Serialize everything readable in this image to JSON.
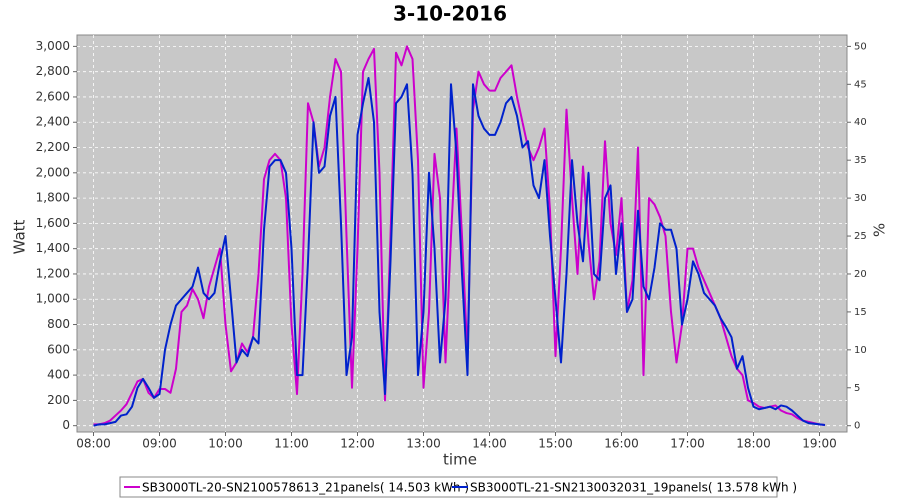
{
  "chart_data": {
    "type": "line",
    "title": "3-10-2016",
    "xlabel": "time",
    "ylabel": "Watt",
    "y2label": "%",
    "x": [
      "08:00",
      "08:05",
      "08:10",
      "08:15",
      "08:20",
      "08:25",
      "08:30",
      "08:35",
      "08:40",
      "08:45",
      "08:50",
      "08:55",
      "09:00",
      "09:05",
      "09:10",
      "09:15",
      "09:20",
      "09:25",
      "09:30",
      "09:35",
      "09:40",
      "09:45",
      "09:50",
      "09:55",
      "10:00",
      "10:05",
      "10:10",
      "10:15",
      "10:20",
      "10:25",
      "10:30",
      "10:35",
      "10:40",
      "10:45",
      "10:50",
      "10:55",
      "11:00",
      "11:05",
      "11:10",
      "11:15",
      "11:20",
      "11:25",
      "11:30",
      "11:35",
      "11:40",
      "11:45",
      "11:50",
      "11:55",
      "12:00",
      "12:05",
      "12:10",
      "12:15",
      "12:20",
      "12:25",
      "12:30",
      "12:35",
      "12:40",
      "12:45",
      "12:50",
      "12:55",
      "13:00",
      "13:05",
      "13:10",
      "13:15",
      "13:20",
      "13:25",
      "13:30",
      "13:35",
      "13:40",
      "13:45",
      "13:50",
      "13:55",
      "14:00",
      "14:05",
      "14:10",
      "14:15",
      "14:20",
      "14:25",
      "14:30",
      "14:35",
      "14:40",
      "14:45",
      "14:50",
      "14:55",
      "15:00",
      "15:05",
      "15:10",
      "15:15",
      "15:20",
      "15:25",
      "15:30",
      "15:35",
      "15:40",
      "15:45",
      "15:50",
      "15:55",
      "16:00",
      "16:05",
      "16:10",
      "16:15",
      "16:20",
      "16:25",
      "16:30",
      "16:35",
      "16:40",
      "16:45",
      "16:50",
      "16:55",
      "17:00",
      "17:05",
      "17:10",
      "17:15",
      "17:20",
      "17:25",
      "17:30",
      "17:35",
      "17:40",
      "17:45",
      "17:50",
      "17:55",
      "18:00",
      "18:05",
      "18:10",
      "18:15",
      "18:20",
      "18:25",
      "18:30",
      "18:35",
      "18:40",
      "18:45",
      "18:50",
      "18:55",
      "19:00",
      "19:05"
    ],
    "series": [
      {
        "name": "SB3000TL-20-SN2100578613_21panels( 14.503 kWh )",
        "color": "#cc00cc",
        "values": [
          10,
          10,
          20,
          40,
          80,
          120,
          170,
          260,
          350,
          370,
          260,
          220,
          290,
          290,
          260,
          450,
          900,
          950,
          1080,
          1000,
          850,
          1100,
          1250,
          1400,
          800,
          430,
          500,
          650,
          580,
          700,
          1200,
          1950,
          2100,
          2150,
          2100,
          1800,
          800,
          250,
          1200,
          2550,
          2400,
          2050,
          2200,
          2600,
          2900,
          2800,
          1500,
          300,
          1400,
          2800,
          2900,
          2980,
          2000,
          200,
          1500,
          2950,
          2850,
          3000,
          2900,
          2100,
          300,
          900,
          2150,
          1800,
          500,
          1500,
          2350,
          1500,
          550,
          2500,
          2800,
          2700,
          2650,
          2650,
          2750,
          2800,
          2850,
          2600,
          2400,
          2200,
          2100,
          2200,
          2350,
          1700,
          550,
          1400,
          2500,
          1800,
          1200,
          2050,
          1450,
          1000,
          1300,
          2250,
          1600,
          1350,
          1800,
          900,
          1150,
          2200,
          400,
          1800,
          1750,
          1650,
          1500,
          900,
          500,
          800,
          1400,
          1400,
          1250,
          1150,
          1050,
          950,
          850,
          700,
          550,
          450,
          400,
          200,
          180,
          150,
          140,
          150,
          160,
          120,
          100,
          90,
          60,
          40,
          30,
          20,
          10,
          5
        ]
      },
      {
        "name": "SB3000TL-21-SN2130032031_19panels( 13.578 kWh )",
        "color": "#0022cc",
        "values": [
          0,
          10,
          10,
          20,
          30,
          80,
          90,
          150,
          300,
          370,
          300,
          220,
          250,
          600,
          800,
          950,
          1000,
          1050,
          1100,
          1250,
          1050,
          1000,
          1050,
          1300,
          1500,
          1000,
          500,
          600,
          550,
          700,
          650,
          1550,
          2050,
          2100,
          2100,
          2000,
          1400,
          400,
          400,
          1300,
          2400,
          2000,
          2050,
          2450,
          2600,
          1600,
          400,
          700,
          2300,
          2550,
          2750,
          2400,
          900,
          250,
          1300,
          2550,
          2600,
          2700,
          2000,
          400,
          900,
          2000,
          1400,
          500,
          1000,
          2700,
          2150,
          1200,
          400,
          2700,
          2450,
          2350,
          2300,
          2300,
          2400,
          2550,
          2600,
          2450,
          2200,
          2250,
          1900,
          1800,
          2100,
          1500,
          1000,
          500,
          1200,
          2100,
          1600,
          1300,
          2000,
          1200,
          1150,
          1800,
          1900,
          1200,
          1600,
          900,
          1000,
          1700,
          1100,
          1000,
          1250,
          1600,
          1550,
          1550,
          1400,
          800,
          1000,
          1300,
          1200,
          1050,
          1000,
          950,
          850,
          780,
          700,
          450,
          550,
          300,
          150,
          130,
          140,
          150,
          130,
          160,
          150,
          120,
          80,
          40,
          20,
          15,
          10,
          5
        ]
      }
    ],
    "xlim": [
      "07:45",
      "19:25"
    ],
    "xticks": [
      "08:00",
      "09:00",
      "10:00",
      "11:00",
      "12:00",
      "13:00",
      "14:00",
      "15:00",
      "16:00",
      "17:00",
      "18:00",
      "19:00"
    ],
    "ylim": [
      -50,
      3090
    ],
    "yticks": [
      0,
      200,
      400,
      600,
      800,
      {
        "value": 1000,
        "label": "1,000"
      },
      {
        "value": 1200,
        "label": "1,200"
      },
      {
        "value": 1400,
        "label": "1,400"
      },
      {
        "value": 1600,
        "label": "1,600"
      },
      {
        "value": 1800,
        "label": "1,800"
      },
      {
        "value": 2000,
        "label": "2,000"
      },
      {
        "value": 2200,
        "label": "2,200"
      },
      {
        "value": 2400,
        "label": "2,400"
      },
      {
        "value": 2600,
        "label": "2,600"
      },
      {
        "value": 2800,
        "label": "2,800"
      },
      {
        "value": 3000,
        "label": "3,000"
      }
    ],
    "y2lim": [
      -0.83,
      51.5
    ],
    "y2ticks": [
      0,
      5,
      10,
      15,
      20,
      25,
      30,
      35,
      40,
      45,
      50
    ],
    "grid": true,
    "legend": "bottom"
  }
}
